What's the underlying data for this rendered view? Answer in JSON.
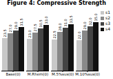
{
  "chart_data": {
    "type": "bar",
    "title": "Figure 4: Compressive Strength",
    "categories": [
      "Base(0)",
      "M.Rhem(0)",
      "M.5%sus(0)",
      "M.10%sus(0)"
    ],
    "series": [
      {
        "name": "s1",
        "color": "#c8c8c8",
        "values": [
          23.5,
          23.0,
          22.5,
          22.0
        ],
        "value_labels": [
          "23.5",
          "23.0",
          "22.5",
          "22.0"
        ]
      },
      {
        "name": "s2",
        "color": "#888888",
        "values": [
          27.0,
          27.5,
          28.0,
          29.0
        ],
        "value_labels": [
          "27.0",
          "27.5",
          "28.0",
          "29.0"
        ]
      },
      {
        "name": "s3",
        "color": "#444444",
        "values": [
          29.0,
          30.5,
          31.0,
          32.0
        ],
        "value_labels": [
          "29.0",
          "30.5",
          "31.0",
          "32.0"
        ]
      },
      {
        "name": "s4",
        "color": "#111111",
        "values": [
          31.5,
          33.0,
          33.5,
          35.0
        ],
        "value_labels": [
          "31.5",
          "33.0",
          "33.5",
          "35.0"
        ]
      }
    ],
    "ylim": [
      0,
      45
    ],
    "data_labels": true,
    "legend": "right",
    "tick_labels": "x"
  }
}
